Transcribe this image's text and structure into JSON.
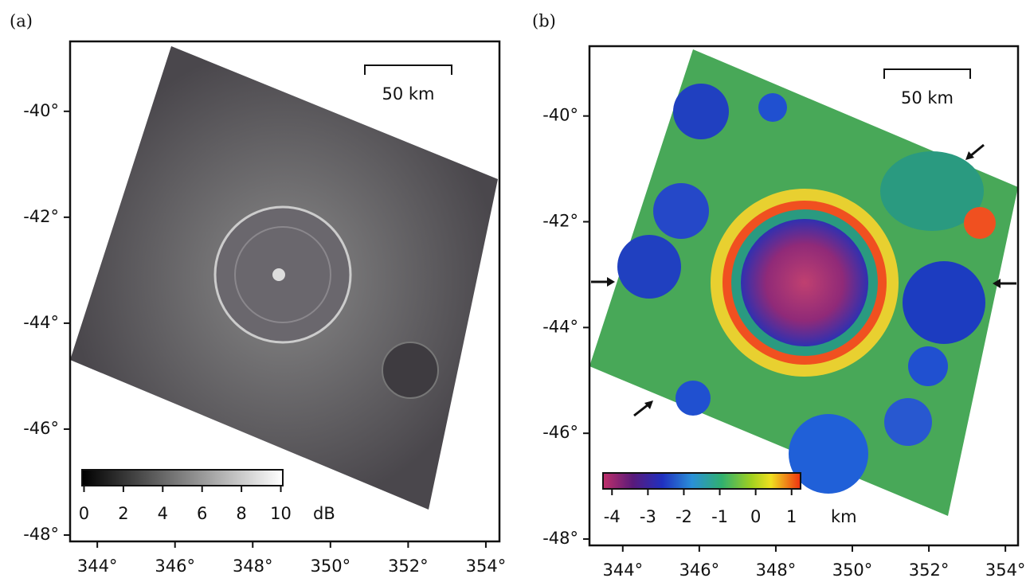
{
  "panels": [
    {
      "label": "(a)",
      "xlim": [
        343.3,
        354.35
      ],
      "ylim": [
        -48.12,
        -38.68
      ],
      "xticks": [
        {
          "value": 344,
          "label": "344°"
        },
        {
          "value": 346,
          "label": "346°"
        },
        {
          "value": 348,
          "label": "348°"
        },
        {
          "value": 350,
          "label": "350°"
        },
        {
          "value": 352,
          "label": "352°"
        },
        {
          "value": 354,
          "label": "354°"
        }
      ],
      "yticks": [
        {
          "value": -40,
          "label": "-40°"
        },
        {
          "value": -42,
          "label": "-42°"
        },
        {
          "value": -44,
          "label": "-44°"
        },
        {
          "value": -46,
          "label": "-46°"
        },
        {
          "value": -48,
          "label": "-48°"
        }
      ],
      "scale_bar": "50 km",
      "colorbar": {
        "range": [
          -0.1,
          10.1
        ],
        "ticks": [
          0,
          2,
          4,
          6,
          8,
          10
        ],
        "unit": "dB"
      }
    },
    {
      "label": "(b)",
      "xlim": [
        343.13,
        354.33
      ],
      "ylim": [
        -48.12,
        -38.68
      ],
      "xticks": [
        {
          "value": 344,
          "label": "344°"
        },
        {
          "value": 346,
          "label": "346°"
        },
        {
          "value": 348,
          "label": "348°"
        },
        {
          "value": 350,
          "label": "350°"
        },
        {
          "value": 352,
          "label": "352°"
        },
        {
          "value": 354,
          "label": "354°"
        }
      ],
      "yticks": [
        {
          "value": -40,
          "label": "-40°"
        },
        {
          "value": -42,
          "label": "-42°"
        },
        {
          "value": -44,
          "label": "-44°"
        },
        {
          "value": -46,
          "label": "-46°"
        },
        {
          "value": -48,
          "label": "-48°"
        }
      ],
      "scale_bar": "50 km",
      "colorbar": {
        "range": [
          -4.25,
          1.25
        ],
        "ticks": [
          -4,
          -3,
          -2,
          -1,
          0,
          1
        ],
        "unit": "km"
      }
    }
  ]
}
